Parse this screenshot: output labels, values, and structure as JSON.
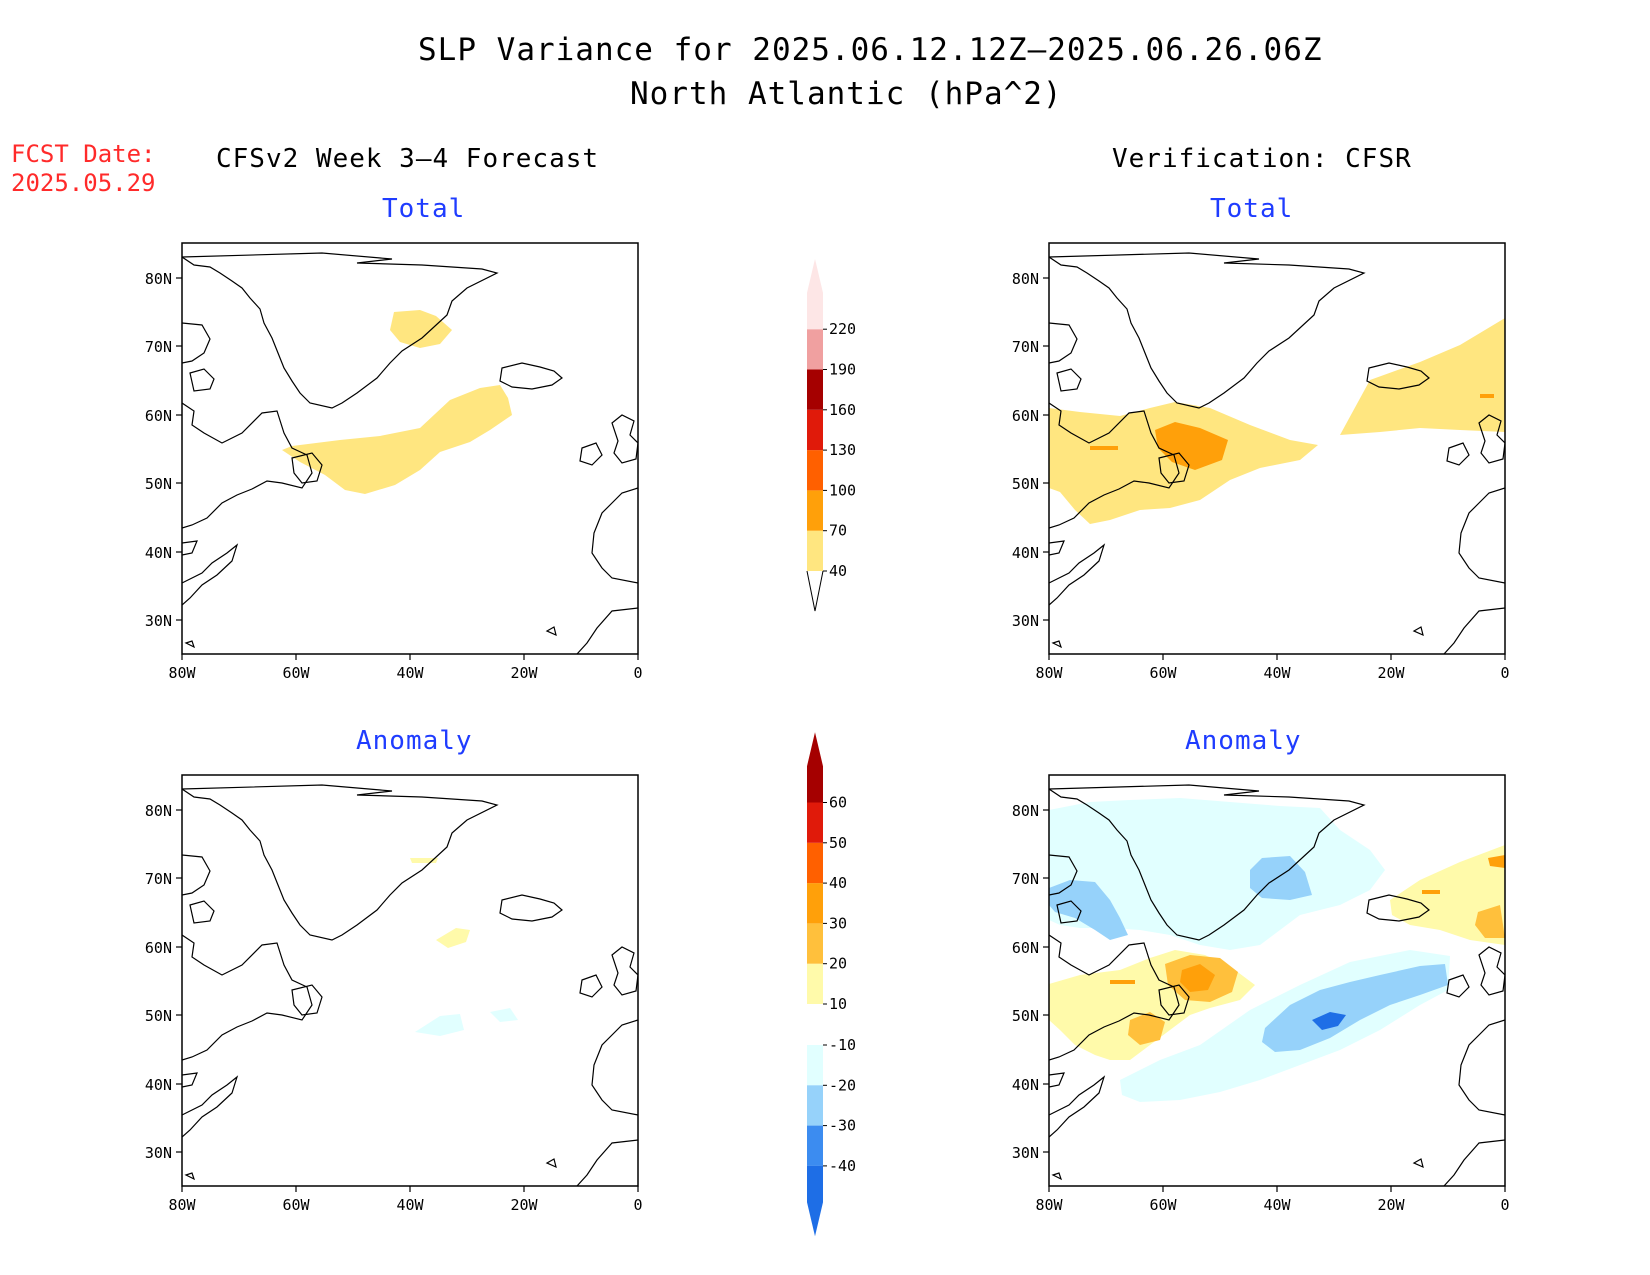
{
  "title": {
    "line1": "SLP Variance for 2025.06.12.12Z–2025.06.26.06Z",
    "line2": "North Atlantic (hPa^2)"
  },
  "fcst_date": {
    "label": "FCST Date:",
    "value": "2025.05.29"
  },
  "columns": {
    "left": "CFSv2 Week 3–4 Forecast",
    "right": "Verification: CFSR"
  },
  "panels": {
    "forecast_total": "Total",
    "forecast_anomaly": "Anomaly",
    "verification_total": "Total",
    "verification_anomaly": "Anomaly"
  },
  "axes": {
    "lat_labels": [
      "80N",
      "70N",
      "60N",
      "50N",
      "40N",
      "30N"
    ],
    "lon_labels": [
      "80W",
      "60W",
      "40W",
      "20W",
      "0"
    ]
  },
  "colorbar_total": {
    "labels": [
      "40",
      "70",
      "100",
      "130",
      "160",
      "190",
      "220"
    ],
    "colors": [
      "#ffe680",
      "#ffa00a",
      "#ff6000",
      "#e01a0a",
      "#a50000",
      "#f0a0a0",
      "#fde6e6"
    ]
  },
  "colorbar_anomaly": {
    "labels": [
      "-40",
      "-30",
      "-20",
      "-10",
      "10",
      "20",
      "30",
      "40",
      "50",
      "60"
    ],
    "colors_negative": [
      "#1e6ee6",
      "#3c8cf0",
      "#96d2fa",
      "#e1ffff"
    ],
    "colors_positive": [
      "#fffaaa",
      "#ffc03c",
      "#ffa00a",
      "#ff6000",
      "#e01a0a",
      "#a50000"
    ]
  }
}
